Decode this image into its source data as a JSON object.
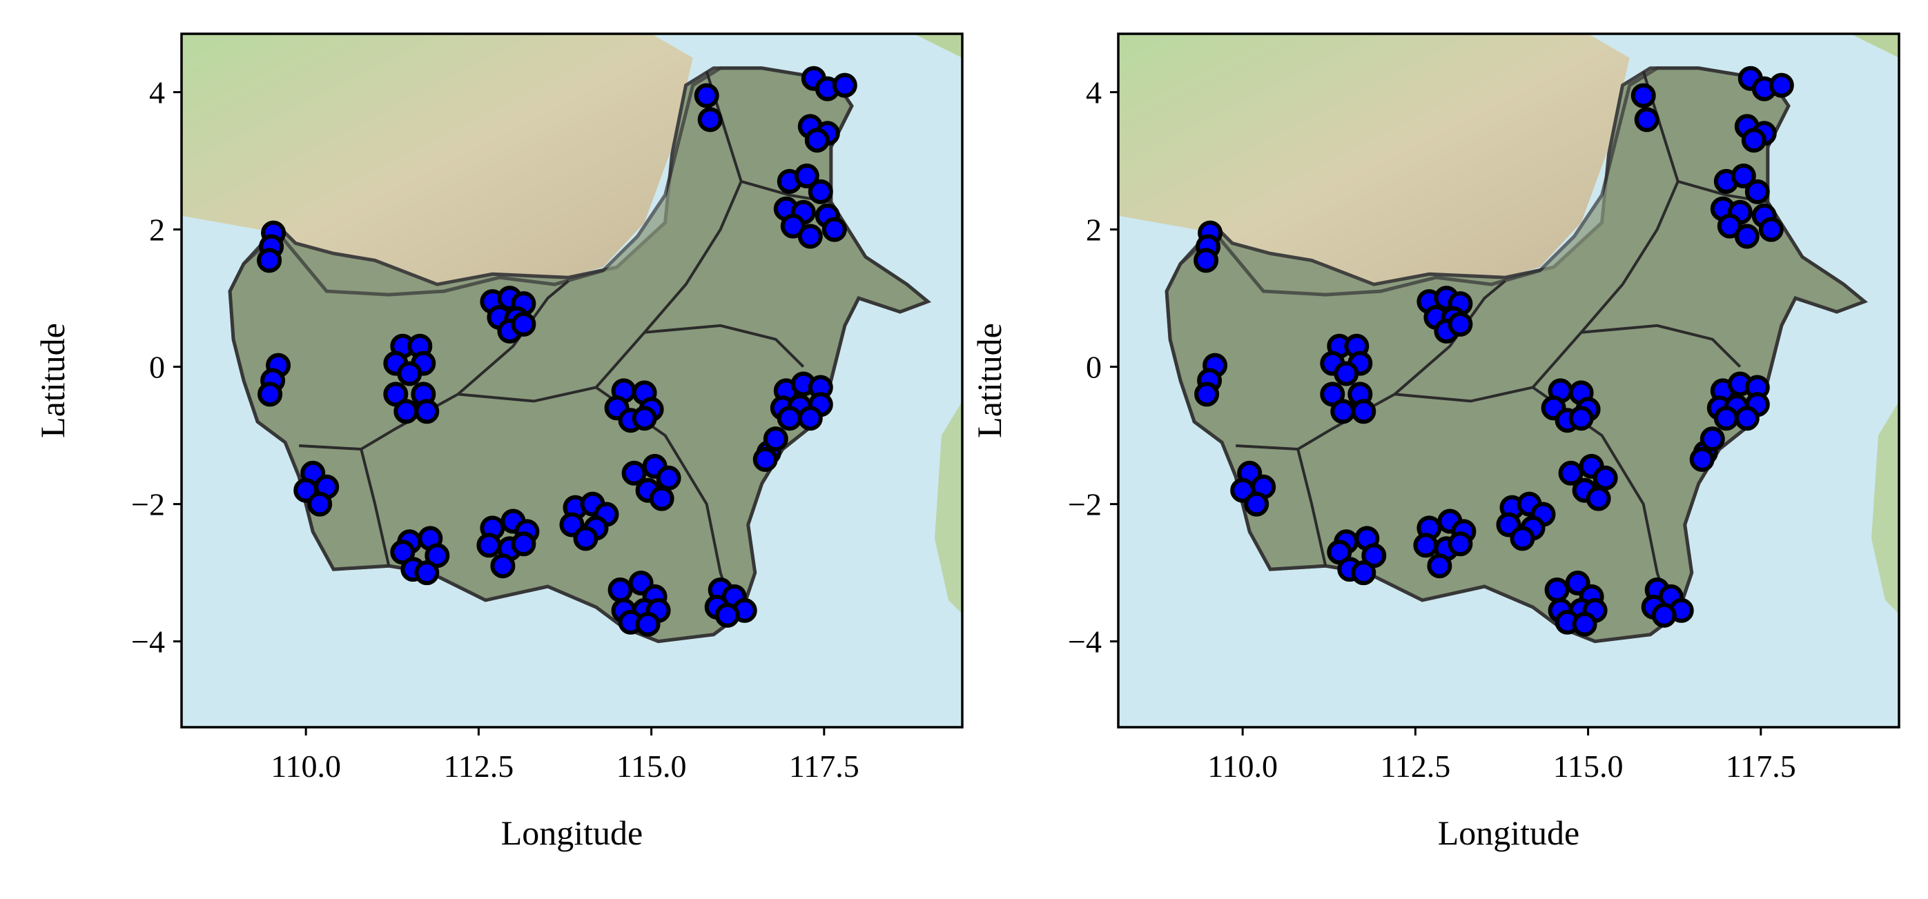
{
  "colors": {
    "sea": "#cde8f0",
    "land_green": "#a9d49a",
    "land_tan": "#cfc3a4",
    "region_fill": "#8a9a7c",
    "point_fill": "#0000ff",
    "point_edge": "#000000"
  },
  "chart_data": [
    {
      "type": "scatter",
      "title": "",
      "xlabel": "Longitude",
      "ylabel": "Latitude",
      "xlim": [
        108.2,
        119.5
      ],
      "ylim": [
        -5.25,
        4.85
      ],
      "x_ticks": [
        110.0,
        112.5,
        115.0,
        117.5
      ],
      "x_tick_labels": [
        "110.0",
        "112.5",
        "115.0",
        "117.5"
      ],
      "y_ticks": [
        4,
        2,
        0,
        -2,
        -4
      ],
      "y_tick_labels": [
        "4",
        "2",
        "0",
        "−2",
        "−4"
      ],
      "grid": false,
      "basemap": "terrain",
      "series": [
        {
          "points": [
            [
              109.53,
              1.95
            ],
            [
              109.5,
              1.75
            ],
            [
              109.47,
              1.55
            ],
            [
              109.6,
              0.02
            ],
            [
              109.52,
              -0.2
            ],
            [
              109.48,
              -0.4
            ],
            [
              110.1,
              -1.55
            ],
            [
              110.3,
              -1.75
            ],
            [
              110.0,
              -1.8
            ],
            [
              110.2,
              -2.0
            ],
            [
              111.4,
              0.3
            ],
            [
              111.65,
              0.3
            ],
            [
              111.3,
              0.05
            ],
            [
              111.7,
              0.05
            ],
            [
              111.5,
              -0.1
            ],
            [
              111.3,
              -0.4
            ],
            [
              111.7,
              -0.4
            ],
            [
              111.45,
              -0.65
            ],
            [
              111.75,
              -0.65
            ],
            [
              112.7,
              0.95
            ],
            [
              112.95,
              1.0
            ],
            [
              113.15,
              0.92
            ],
            [
              112.8,
              0.72
            ],
            [
              113.05,
              0.7
            ],
            [
              112.95,
              0.52
            ],
            [
              113.15,
              0.62
            ],
            [
              114.6,
              -0.35
            ],
            [
              114.9,
              -0.38
            ],
            [
              114.5,
              -0.6
            ],
            [
              115.0,
              -0.62
            ],
            [
              114.7,
              -0.78
            ],
            [
              114.9,
              -0.75
            ],
            [
              114.75,
              -1.55
            ],
            [
              115.05,
              -1.45
            ],
            [
              115.25,
              -1.62
            ],
            [
              114.95,
              -1.8
            ],
            [
              115.15,
              -1.92
            ],
            [
              113.9,
              -2.05
            ],
            [
              114.15,
              -2.0
            ],
            [
              114.35,
              -2.15
            ],
            [
              113.85,
              -2.3
            ],
            [
              114.2,
              -2.35
            ],
            [
              114.05,
              -2.5
            ],
            [
              112.7,
              -2.35
            ],
            [
              113.0,
              -2.25
            ],
            [
              113.2,
              -2.4
            ],
            [
              112.65,
              -2.6
            ],
            [
              112.95,
              -2.65
            ],
            [
              113.15,
              -2.58
            ],
            [
              112.85,
              -2.9
            ],
            [
              111.5,
              -2.55
            ],
            [
              111.8,
              -2.5
            ],
            [
              111.4,
              -2.7
            ],
            [
              111.9,
              -2.75
            ],
            [
              111.55,
              -2.95
            ],
            [
              111.75,
              -3.0
            ],
            [
              114.55,
              -3.25
            ],
            [
              114.85,
              -3.15
            ],
            [
              115.05,
              -3.35
            ],
            [
              114.6,
              -3.55
            ],
            [
              114.9,
              -3.55
            ],
            [
              115.1,
              -3.55
            ],
            [
              114.7,
              -3.72
            ],
            [
              114.95,
              -3.75
            ],
            [
              116.0,
              -3.25
            ],
            [
              116.2,
              -3.35
            ],
            [
              115.95,
              -3.5
            ],
            [
              116.35,
              -3.55
            ],
            [
              116.1,
              -3.62
            ],
            [
              116.7,
              -1.25
            ],
            [
              116.8,
              -1.05
            ],
            [
              116.65,
              -1.35
            ],
            [
              116.95,
              -0.35
            ],
            [
              117.2,
              -0.25
            ],
            [
              117.45,
              -0.3
            ],
            [
              116.9,
              -0.6
            ],
            [
              117.15,
              -0.58
            ],
            [
              117.45,
              -0.55
            ],
            [
              117.0,
              -0.75
            ],
            [
              117.3,
              -0.75
            ],
            [
              117.0,
              2.7
            ],
            [
              117.25,
              2.78
            ],
            [
              116.95,
              2.3
            ],
            [
              117.2,
              2.25
            ],
            [
              117.45,
              2.55
            ],
            [
              117.05,
              2.05
            ],
            [
              117.3,
              1.9
            ],
            [
              117.55,
              2.2
            ],
            [
              117.65,
              2.0
            ],
            [
              117.35,
              4.2
            ],
            [
              117.55,
              4.05
            ],
            [
              117.8,
              4.1
            ],
            [
              117.3,
              3.5
            ],
            [
              117.55,
              3.4
            ],
            [
              117.4,
              3.3
            ],
            [
              115.8,
              3.95
            ],
            [
              115.85,
              3.6
            ]
          ]
        }
      ]
    },
    {
      "type": "scatter",
      "title": "",
      "xlabel": "Longitude",
      "ylabel": "Latitude",
      "xlim": [
        108.2,
        119.5
      ],
      "ylim": [
        -5.25,
        4.85
      ],
      "x_ticks": [
        110.0,
        112.5,
        115.0,
        117.5
      ],
      "x_tick_labels": [
        "110.0",
        "112.5",
        "115.0",
        "117.5"
      ],
      "y_ticks": [
        4,
        2,
        0,
        -2,
        -4
      ],
      "y_tick_labels": [
        "4",
        "2",
        "0",
        "−2",
        "−4"
      ],
      "grid": false,
      "basemap": "terrain",
      "series": [
        {
          "points": [
            [
              109.53,
              1.95
            ],
            [
              109.5,
              1.75
            ],
            [
              109.47,
              1.55
            ],
            [
              109.6,
              0.02
            ],
            [
              109.52,
              -0.2
            ],
            [
              109.48,
              -0.4
            ],
            [
              110.1,
              -1.55
            ],
            [
              110.3,
              -1.75
            ],
            [
              110.0,
              -1.8
            ],
            [
              110.2,
              -2.0
            ],
            [
              111.4,
              0.3
            ],
            [
              111.65,
              0.3
            ],
            [
              111.3,
              0.05
            ],
            [
              111.7,
              0.05
            ],
            [
              111.5,
              -0.1
            ],
            [
              111.3,
              -0.4
            ],
            [
              111.7,
              -0.4
            ],
            [
              111.45,
              -0.65
            ],
            [
              111.75,
              -0.65
            ],
            [
              112.7,
              0.95
            ],
            [
              112.95,
              1.0
            ],
            [
              113.15,
              0.92
            ],
            [
              112.8,
              0.72
            ],
            [
              113.05,
              0.7
            ],
            [
              112.95,
              0.52
            ],
            [
              113.15,
              0.62
            ],
            [
              114.6,
              -0.35
            ],
            [
              114.9,
              -0.38
            ],
            [
              114.5,
              -0.6
            ],
            [
              115.0,
              -0.62
            ],
            [
              114.7,
              -0.78
            ],
            [
              114.9,
              -0.75
            ],
            [
              114.75,
              -1.55
            ],
            [
              115.05,
              -1.45
            ],
            [
              115.25,
              -1.62
            ],
            [
              114.95,
              -1.8
            ],
            [
              115.15,
              -1.92
            ],
            [
              113.9,
              -2.05
            ],
            [
              114.15,
              -2.0
            ],
            [
              114.35,
              -2.15
            ],
            [
              113.85,
              -2.3
            ],
            [
              114.2,
              -2.35
            ],
            [
              114.05,
              -2.5
            ],
            [
              112.7,
              -2.35
            ],
            [
              113.0,
              -2.25
            ],
            [
              113.2,
              -2.4
            ],
            [
              112.65,
              -2.6
            ],
            [
              112.95,
              -2.65
            ],
            [
              113.15,
              -2.58
            ],
            [
              112.85,
              -2.9
            ],
            [
              111.5,
              -2.55
            ],
            [
              111.8,
              -2.5
            ],
            [
              111.4,
              -2.7
            ],
            [
              111.9,
              -2.75
            ],
            [
              111.55,
              -2.95
            ],
            [
              111.75,
              -3.0
            ],
            [
              114.55,
              -3.25
            ],
            [
              114.85,
              -3.15
            ],
            [
              115.05,
              -3.35
            ],
            [
              114.6,
              -3.55
            ],
            [
              114.9,
              -3.55
            ],
            [
              115.1,
              -3.55
            ],
            [
              114.7,
              -3.72
            ],
            [
              114.95,
              -3.75
            ],
            [
              116.0,
              -3.25
            ],
            [
              116.2,
              -3.35
            ],
            [
              115.95,
              -3.5
            ],
            [
              116.35,
              -3.55
            ],
            [
              116.1,
              -3.62
            ],
            [
              116.7,
              -1.25
            ],
            [
              116.8,
              -1.05
            ],
            [
              116.65,
              -1.35
            ],
            [
              116.95,
              -0.35
            ],
            [
              117.2,
              -0.25
            ],
            [
              117.45,
              -0.3
            ],
            [
              116.9,
              -0.6
            ],
            [
              117.15,
              -0.58
            ],
            [
              117.45,
              -0.55
            ],
            [
              117.0,
              -0.75
            ],
            [
              117.3,
              -0.75
            ],
            [
              117.0,
              2.7
            ],
            [
              117.25,
              2.78
            ],
            [
              116.95,
              2.3
            ],
            [
              117.2,
              2.25
            ],
            [
              117.45,
              2.55
            ],
            [
              117.05,
              2.05
            ],
            [
              117.3,
              1.9
            ],
            [
              117.55,
              2.2
            ],
            [
              117.65,
              2.0
            ],
            [
              117.35,
              4.2
            ],
            [
              117.55,
              4.05
            ],
            [
              117.8,
              4.1
            ],
            [
              117.3,
              3.5
            ],
            [
              117.55,
              3.4
            ],
            [
              117.4,
              3.3
            ],
            [
              115.8,
              3.95
            ],
            [
              115.85,
              3.6
            ]
          ]
        }
      ]
    }
  ]
}
